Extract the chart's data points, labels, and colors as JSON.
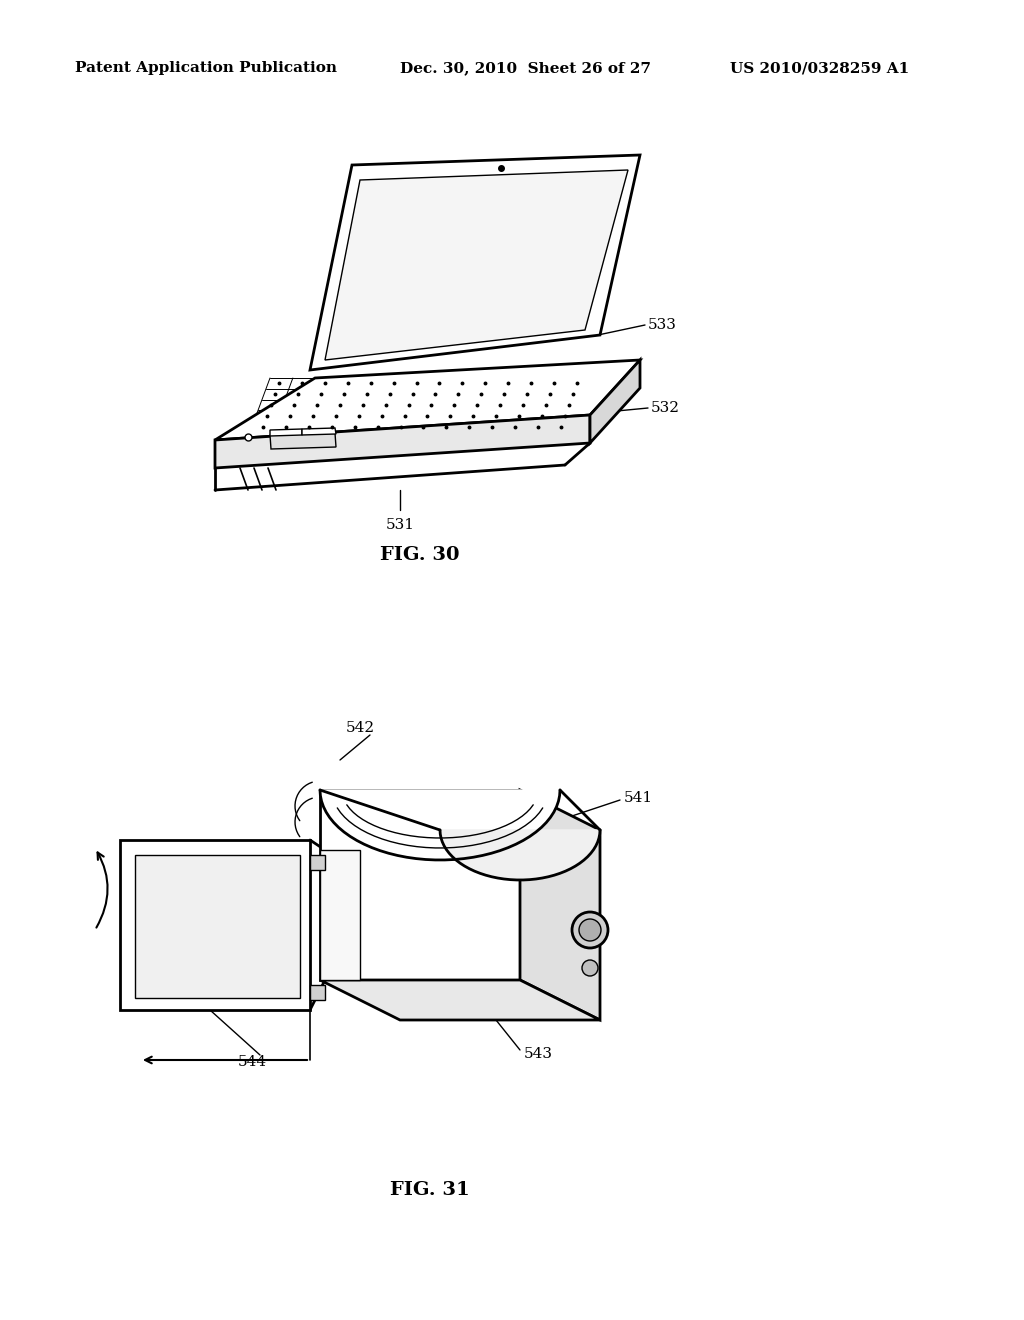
{
  "bg_color": "#ffffff",
  "header_left": "Patent Application Publication",
  "header_mid": "Dec. 30, 2010  Sheet 26 of 27",
  "header_right": "US 2010/0328259 A1",
  "fig30_caption": "FIG. 30",
  "fig31_caption": "FIG. 31",
  "lw_main": 2.0,
  "lw_thin": 1.0,
  "lw_med": 1.4
}
